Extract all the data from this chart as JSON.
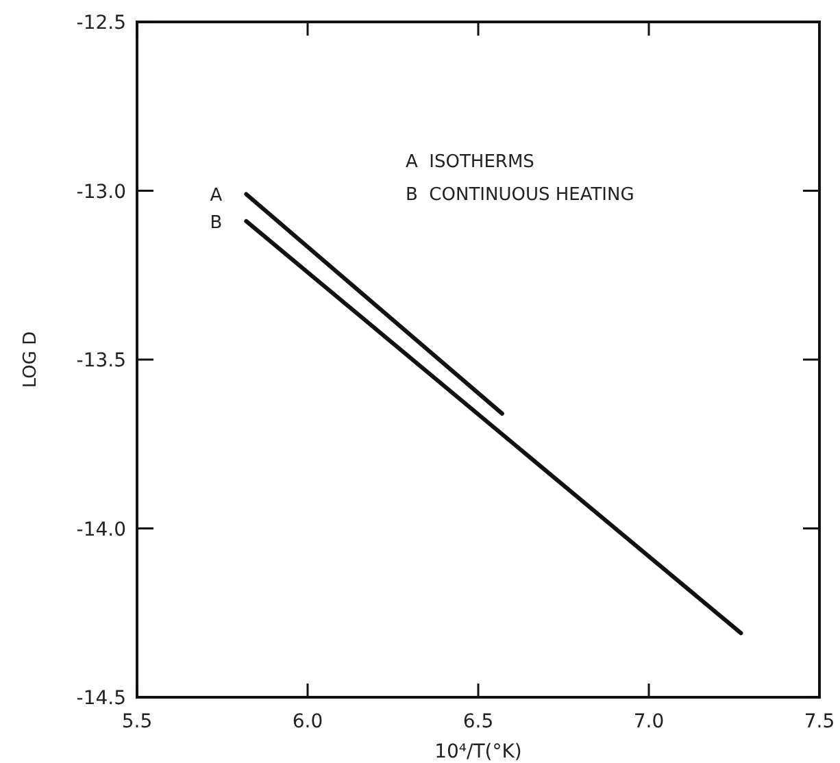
{
  "chart_data": {
    "type": "line",
    "xlabel": "10⁴/T(°K)",
    "ylabel": "LOG D",
    "xlim": [
      5.5,
      7.5
    ],
    "xticks": [
      {
        "value": 5.5,
        "label": "5.5"
      },
      {
        "value": 6,
        "label": "6.0"
      },
      {
        "value": 6.5,
        "label": "6.5"
      },
      {
        "value": 7,
        "label": "7.0"
      },
      {
        "value": 7.5,
        "label": "7.5"
      }
    ],
    "ylim": [
      -14.5,
      -12.5
    ],
    "yticks": [
      {
        "value": -14.5,
        "label": "-14.5"
      },
      {
        "value": -14,
        "label": "-14.0"
      },
      {
        "value": -13.5,
        "label": "-13.5"
      },
      {
        "value": -13,
        "label": "-13.0"
      },
      {
        "value": -12.5,
        "label": "-12.5"
      }
    ],
    "series": [
      {
        "name": "A",
        "color": "#111111",
        "x": [
          5.82,
          6.57
        ],
        "values": [
          -13.01,
          -13.66
        ]
      },
      {
        "name": "B",
        "color": "#111111",
        "x": [
          5.82,
          7.27
        ],
        "values": [
          -13.09,
          -14.31
        ]
      }
    ],
    "annotations": [
      "A  ISOTHERMS",
      "B  CONTINUOUS HEATING"
    ],
    "grid": false,
    "marker": "none",
    "line_style": "solid"
  }
}
